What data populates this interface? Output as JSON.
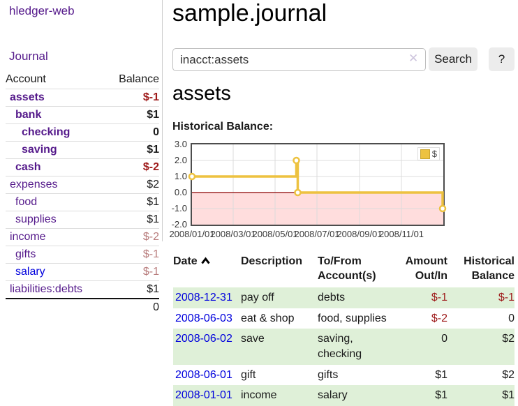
{
  "theme": {
    "link_purple": "#551a8b",
    "link_blue": "#0000dd",
    "negative_strong": "#9e1a1a",
    "negative_muted": "#b87c7c",
    "row_green": "#dff0d8",
    "button_bg": "#ececec",
    "border_gray": "#cccccc"
  },
  "app": {
    "brand": "hledger-web",
    "nav_journal": "Journal"
  },
  "sidebar": {
    "headers": {
      "account": "Account",
      "balance": "Balance"
    },
    "accounts": [
      {
        "name": "assets",
        "balance": "$-1"
      },
      {
        "name": "bank",
        "balance": "$1"
      },
      {
        "name": "checking",
        "balance": "0"
      },
      {
        "name": "saving",
        "balance": "$1"
      },
      {
        "name": "cash",
        "balance": "$-2"
      },
      {
        "name": "expenses",
        "balance": "$2"
      },
      {
        "name": "food",
        "balance": "$1"
      },
      {
        "name": "supplies",
        "balance": "$1"
      },
      {
        "name": "income",
        "balance": "$-2"
      },
      {
        "name": "gifts",
        "balance": "$-1"
      },
      {
        "name": "salary",
        "balance": "$-1"
      },
      {
        "name": "liabilities:debts",
        "balance": "$1"
      }
    ],
    "total": "0"
  },
  "header": {
    "title": "sample.journal"
  },
  "search": {
    "value": "inacct:assets",
    "clear_icon": "✕",
    "button_label": "Search",
    "help_label": "?"
  },
  "account_page": {
    "heading": "assets",
    "chart_label": "Historical Balance:"
  },
  "chart_data": {
    "type": "line",
    "step": true,
    "title": "Historical Balance",
    "series": [
      {
        "name": "$",
        "color": "#edc240",
        "points": [
          [
            "2008-01-01",
            1.0
          ],
          [
            "2008-06-01",
            2.0
          ],
          [
            "2008-06-03",
            0.0
          ],
          [
            "2008-12-31",
            -1.0
          ]
        ]
      }
    ],
    "xlim": [
      "2008-01-01",
      "2009-01-01"
    ],
    "ylim": [
      -2,
      3
    ],
    "y_ticks": [
      3.0,
      2.0,
      1.0,
      0.0,
      -1.0,
      -2.0
    ],
    "x_ticks": [
      {
        "date": "2008-01-01",
        "label": "2008/01/01"
      },
      {
        "date": "2008-03-01",
        "label": "2008/03/01"
      },
      {
        "date": "2008-05-01",
        "label": "2008/05/01"
      },
      {
        "date": "2008-07-01",
        "label": "2008/07/01"
      },
      {
        "date": "2008-09-01",
        "label": "2008/09/01"
      },
      {
        "date": "2008-11-01",
        "label": "2008/11/01"
      }
    ],
    "grid": true,
    "grid_color": "#dcdcdc",
    "zero_line_color": "#8b0000",
    "negative_fill": "#ffdddd",
    "marker_fill": "#ffffff",
    "legend_position": "top-right"
  },
  "register": {
    "headers": {
      "date": "Date",
      "description": "Description",
      "accounts": "To/From\nAccount(s)",
      "amount": "Amount\nOut/In",
      "balance": "Historical\nBalance"
    },
    "rows": [
      {
        "date": "2008-12-31",
        "description": "pay off",
        "accounts": "debts",
        "amount": "$-1",
        "balance": "$-1"
      },
      {
        "date": "2008-06-03",
        "description": "eat & shop",
        "accounts": "food, supplies",
        "amount": "$-2",
        "balance": "0"
      },
      {
        "date": "2008-06-02",
        "description": "save",
        "accounts": "saving,\nchecking",
        "amount": "0",
        "balance": "$2"
      },
      {
        "date": "2008-06-01",
        "description": "gift",
        "accounts": "gifts",
        "amount": "$1",
        "balance": "$2"
      },
      {
        "date": "2008-01-01",
        "description": "income",
        "accounts": "salary",
        "amount": "$1",
        "balance": "$1"
      }
    ]
  }
}
